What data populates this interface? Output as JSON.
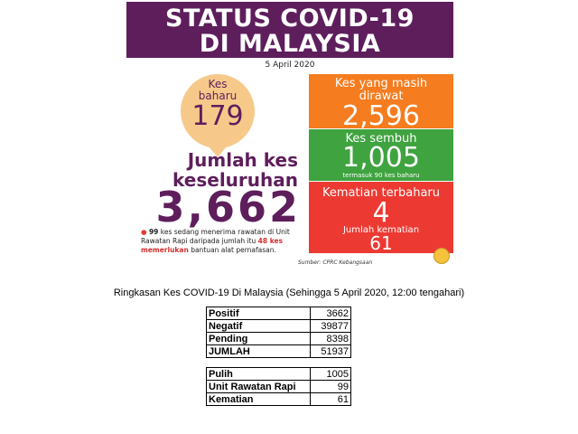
{
  "header": {
    "title_line1": "STATUS COVID-19",
    "title_line2": "DI MALAYSIA"
  },
  "date": "5 April 2020",
  "new_cases": {
    "label_line1": "Kes",
    "label_line2": "baharu",
    "value": "179"
  },
  "total_cases": {
    "label_line1": "Jumlah kes",
    "label_line2": "keseluruhan",
    "value": "3,662"
  },
  "icu_note": {
    "icu_count": "99",
    "text1": "kes sedang menerima rawatan di Unit Rawatan Rapi daripada jumlah itu",
    "ventilator_count": "48 kes memerlukan",
    "text2": "bantuan alat pernafasan."
  },
  "active": {
    "label_line1": "Kes yang masih",
    "label_line2": "dirawat",
    "value": "2,596"
  },
  "recovered": {
    "label": "Kes sembuh",
    "value": "1,005",
    "sub": "termasuk 90 kes baharu"
  },
  "deaths": {
    "label": "Kematian terbaharu",
    "value": "4",
    "total_label": "Jumlah kematian",
    "total_value": "61"
  },
  "source": "Sumber: CPRC Kebangsaan",
  "summary": {
    "title": "Ringkasan Kes COVID-19 Di Malaysia (Sehingga 5 April 2020, 12:00 tengahari)",
    "table1": [
      {
        "label": "Positif",
        "value": "3662"
      },
      {
        "label": "Negatif",
        "value": "39877"
      },
      {
        "label": "Pending",
        "value": "8398"
      },
      {
        "label": "JUMLAH",
        "value": "51937"
      }
    ],
    "table2": [
      {
        "label": "Pulih",
        "value": "1005"
      },
      {
        "label": "Unit Rawatan Rapi",
        "value": "99"
      },
      {
        "label": "Kematian",
        "value": "61"
      }
    ]
  },
  "colors": {
    "purple": "#5e1e5c",
    "orange": "#f57c1f",
    "green": "#3fa33f",
    "red": "#ec3a33",
    "peach": "#f6c98a"
  }
}
